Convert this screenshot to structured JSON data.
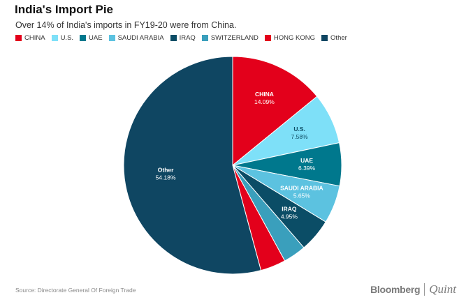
{
  "header": {
    "title": "India's Import Pie",
    "subtitle": "Over 14% of India's imports in FY19-20 were from China."
  },
  "chart_data": {
    "type": "pie",
    "title": "India's Import Pie",
    "subtitle": "Over 14% of India's imports in FY19-20 were from China.",
    "legend_position": "top",
    "slices": [
      {
        "name": "CHINA",
        "legend": "CHINA",
        "label": "CHINA",
        "value": 14.09,
        "value_label": "14.09%",
        "color": "#e3001b",
        "text_color": "#ffffff"
      },
      {
        "name": "U.S.",
        "legend": "U.S.",
        "label": "U.S.",
        "value": 7.58,
        "value_label": "7.58%",
        "color": "#7ee0f8",
        "text_color": "#114f66"
      },
      {
        "name": "UAE",
        "legend": "UAE",
        "label": "UAE",
        "value": 6.39,
        "value_label": "6.39%",
        "color": "#00788d",
        "text_color": "#ffffff"
      },
      {
        "name": "SAUDI ARABIA",
        "legend": "SAUDI ARABIA",
        "label": "SAUDI ARABIA",
        "value": 5.65,
        "value_label": "5.65%",
        "color": "#5cc2e0",
        "text_color": "#ffffff"
      },
      {
        "name": "IRAQ",
        "legend": "IRAQ",
        "label": "IRAQ",
        "value": 4.95,
        "value_label": "4.95%",
        "color": "#0b4d66",
        "text_color": "#ffffff"
      },
      {
        "name": "SWITZERLAND",
        "legend": "SWITZERLAND",
        "label": "",
        "value": 3.4,
        "value_label": "",
        "color": "#3a9fbc",
        "text_color": "#ffffff"
      },
      {
        "name": "HONG KONG",
        "legend": "HONG KONG",
        "label": "",
        "value": 3.76,
        "value_label": "",
        "color": "#e3001b",
        "text_color": "#ffffff"
      },
      {
        "name": "Other",
        "legend": "Other",
        "label": "Other",
        "value": 54.18,
        "value_label": "54.18%",
        "color": "#0f4662",
        "text_color": "#ffffff"
      }
    ]
  },
  "footer": {
    "source": "Source: Directorate General Of Foreign Trade",
    "brand_left": "Bloomberg",
    "brand_right": "Quint"
  }
}
